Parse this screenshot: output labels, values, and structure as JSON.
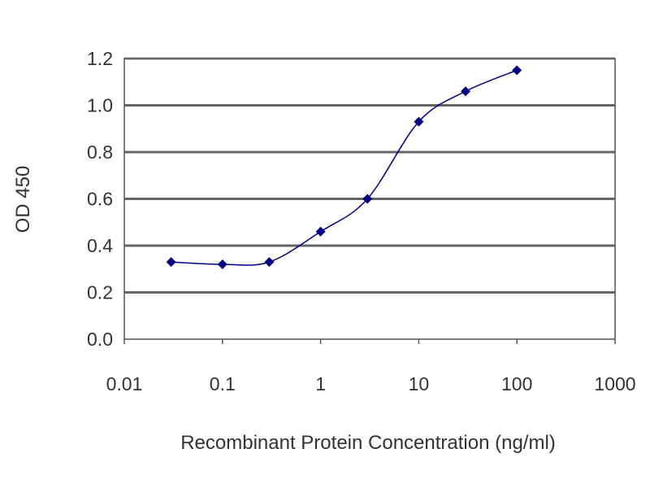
{
  "chart_data": {
    "type": "line",
    "title": "",
    "xlabel": "Recombinant Protein Concentration (ng/ml)",
    "ylabel": "OD 450",
    "xscale": "log",
    "xlim": [
      0.01,
      1000
    ],
    "ylim": [
      0,
      1.2
    ],
    "x_ticks": [
      "0.01",
      "0.1",
      "1",
      "10",
      "100",
      "1000"
    ],
    "y_ticks": [
      "0.0",
      "0.2",
      "0.4",
      "0.6",
      "0.8",
      "1.0",
      "1.2"
    ],
    "grid": "horizontal",
    "legend": "none",
    "series": [
      {
        "x": [
          0.03,
          0.1,
          0.3,
          1,
          3,
          10,
          30,
          100
        ],
        "y": [
          0.33,
          0.32,
          0.33,
          0.46,
          0.6,
          0.93,
          1.06,
          1.15
        ],
        "color": "#000080",
        "marker": "diamond",
        "smooth": true
      }
    ]
  }
}
